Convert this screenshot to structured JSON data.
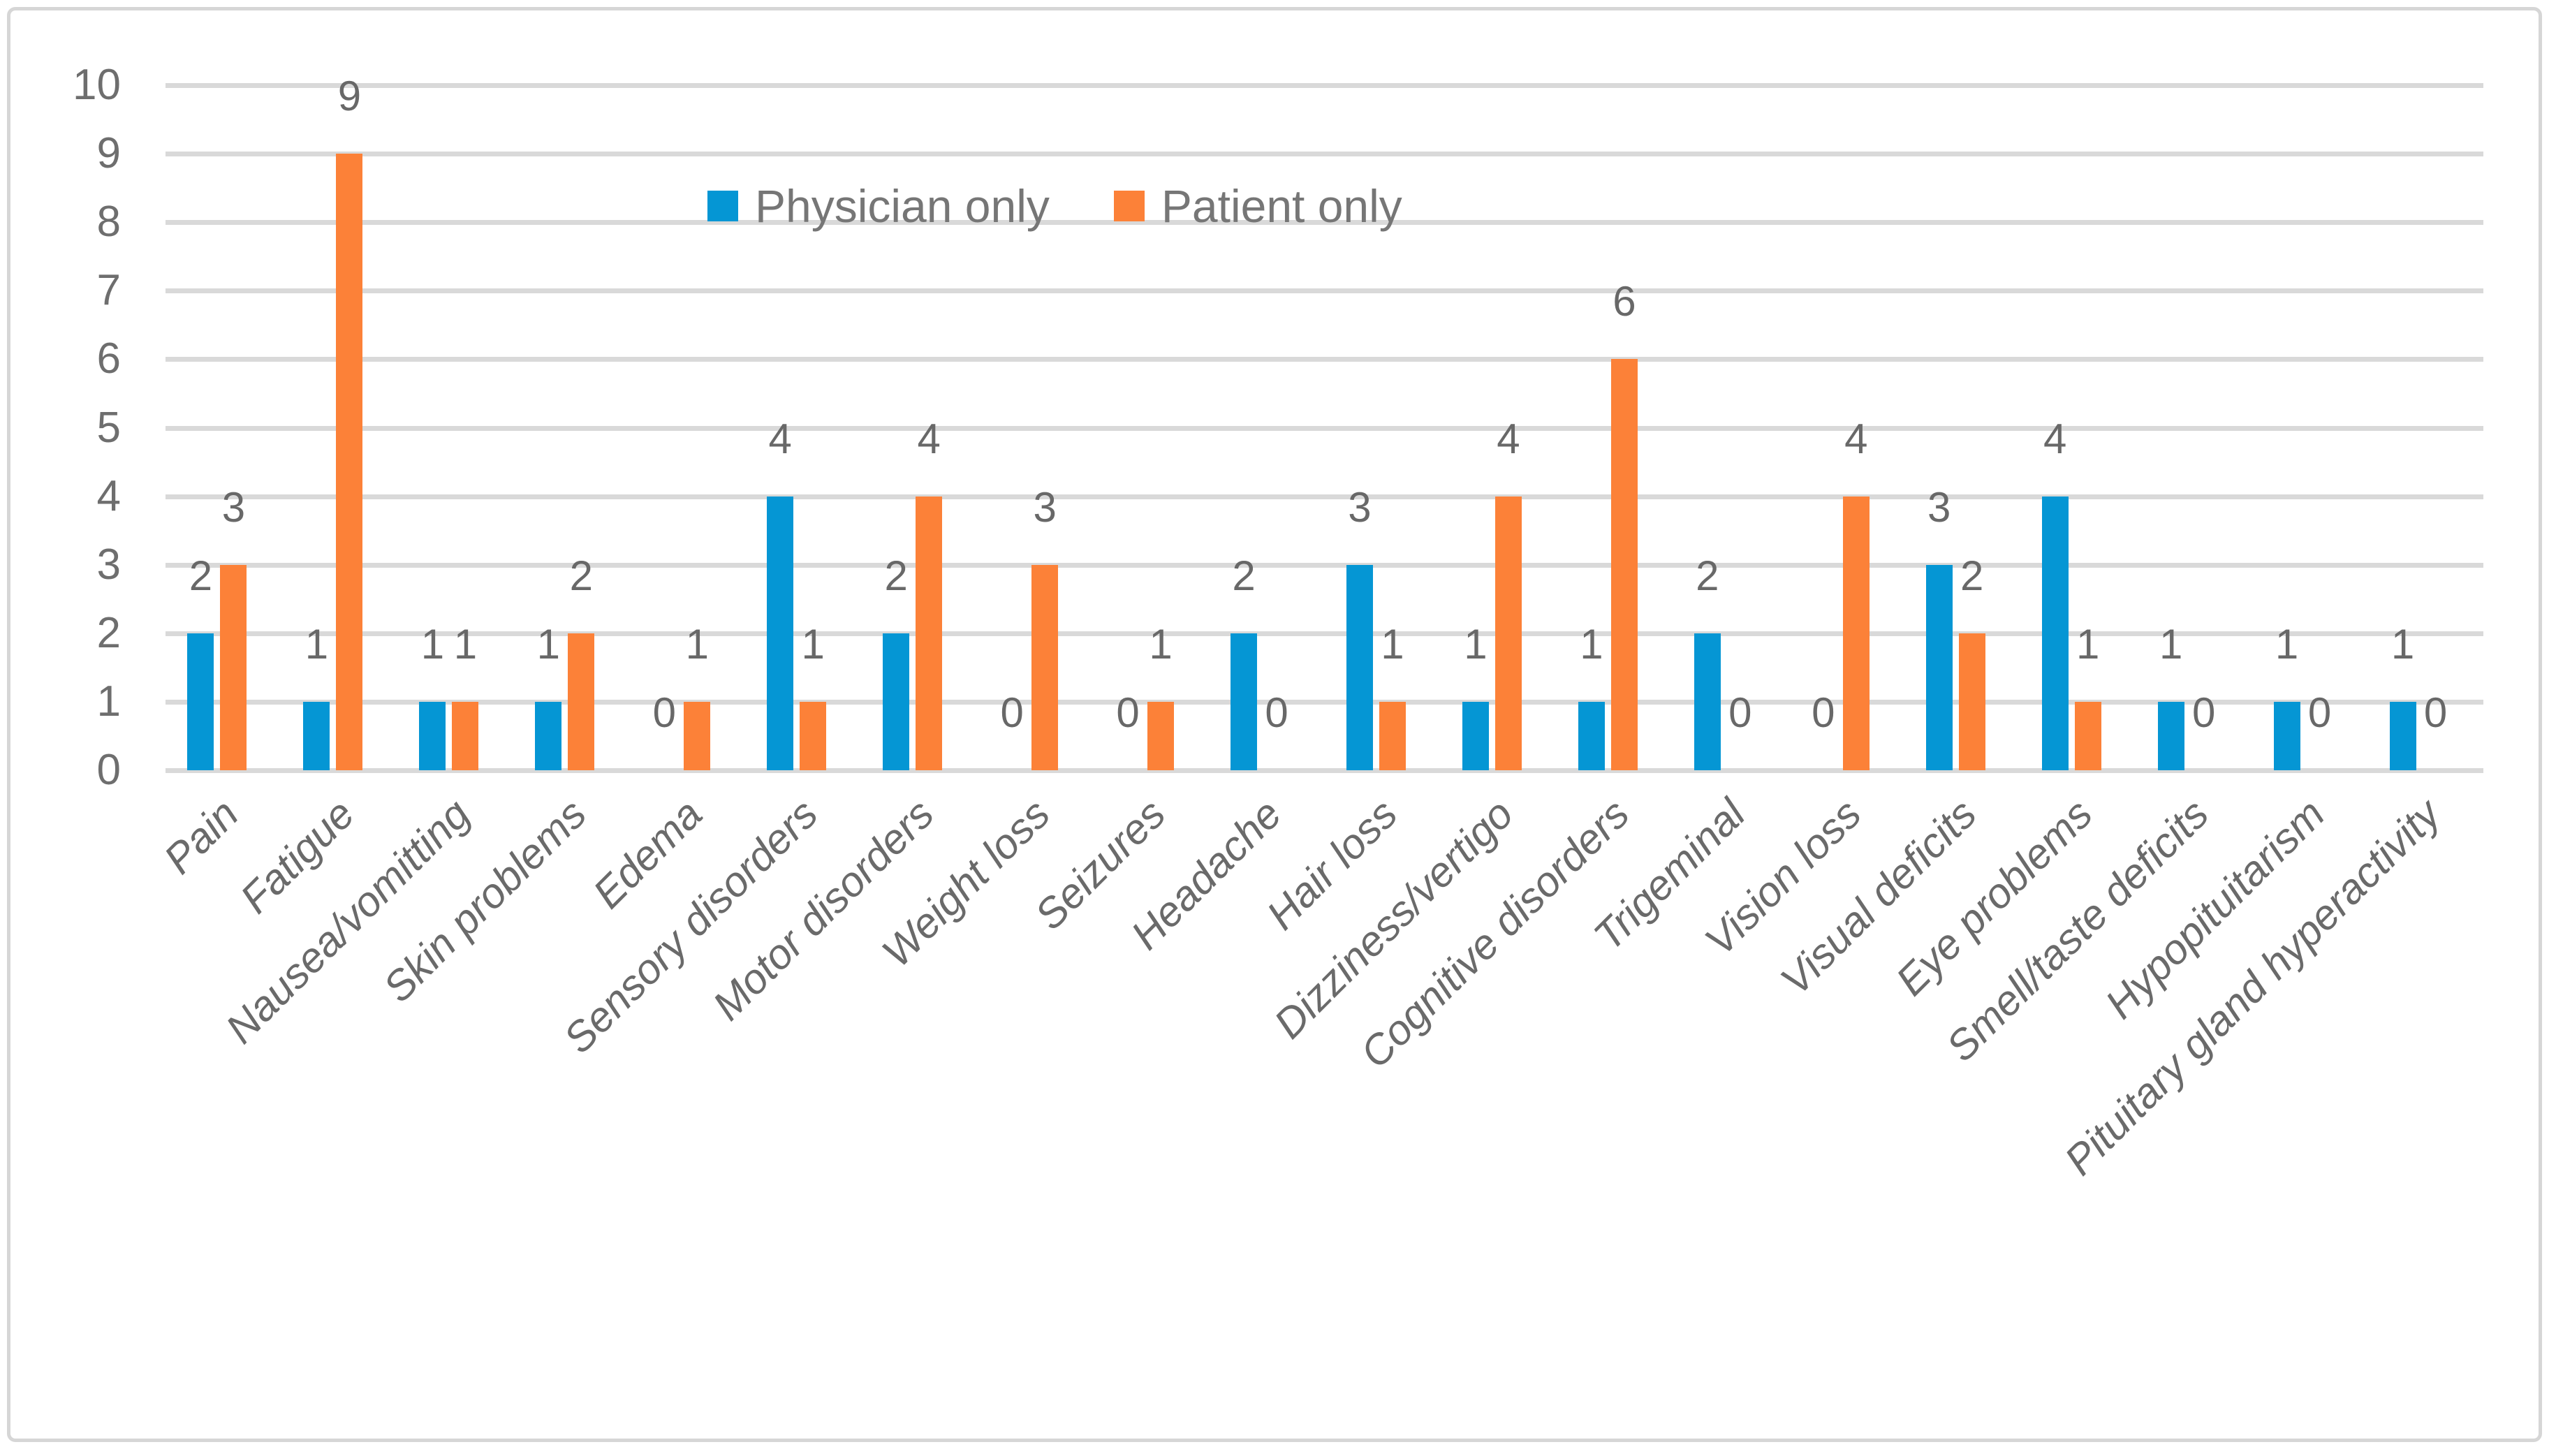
{
  "chart_data": {
    "type": "bar",
    "title": "",
    "categories": [
      "Pain",
      "Fatigue",
      "Nausea/vomitting",
      "Skin problems",
      "Edema",
      "Sensory disorders",
      "Motor disorders",
      "Weight loss",
      "Seizures",
      "Headache",
      "Hair loss",
      "Dizziness/vertigo",
      "Cognitive disorders",
      "Trigeminal",
      "Vision loss",
      "Visual deficits",
      "Eye problems",
      "Smell/taste deficits",
      "Hypopituitarism",
      "Pituitary gland hyperactivity"
    ],
    "series": [
      {
        "name": "Physician only",
        "color": "#0596D4",
        "values": [
          2,
          1,
          1,
          1,
          0,
          4,
          2,
          0,
          0,
          2,
          3,
          1,
          1,
          2,
          0,
          3,
          4,
          1,
          1,
          1
        ]
      },
      {
        "name": "Patient only",
        "color": "#FC8138",
        "values": [
          3,
          9,
          1,
          2,
          1,
          1,
          4,
          3,
          1,
          0,
          1,
          4,
          6,
          0,
          4,
          2,
          1,
          0,
          0,
          0
        ]
      }
    ],
    "xlabel": "",
    "ylabel": "",
    "ylim": [
      0,
      10
    ],
    "yticks": [
      "0",
      "1",
      "2",
      "3",
      "4",
      "5",
      "6",
      "7",
      "8",
      "9",
      "10"
    ],
    "grid": "horizontal",
    "legend_position": "top-center-inside",
    "value_labels": "above-bars"
  },
  "style": {
    "bar_color_physician": "#0596D4",
    "bar_color_patient": "#FC8138",
    "gridline_color": "#d9d9d9",
    "text_color": "#6e6e6e",
    "figure_border_color": "#d6d6d6",
    "background_color": "#ffffff"
  }
}
